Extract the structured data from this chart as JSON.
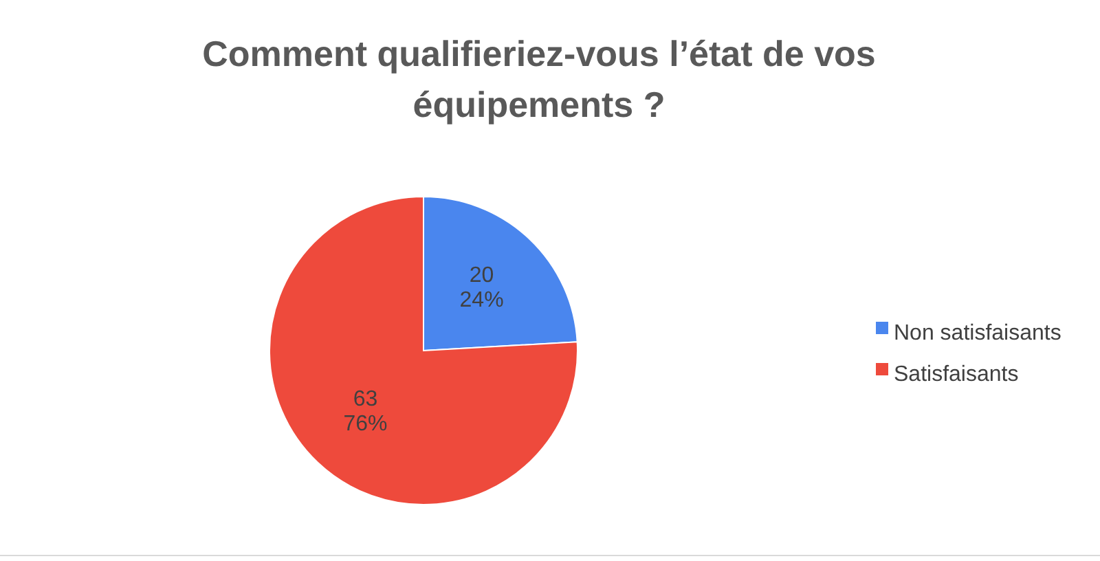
{
  "chart_data": {
    "type": "pie",
    "title": "Comment qualifieriez-vous l’état de vos équipements ?",
    "categories": [
      "Non satisfaisants",
      "Satisfaisants"
    ],
    "values": [
      20,
      63
    ],
    "colors": [
      "#4a86ee",
      "#ee4a3c"
    ],
    "value_labels": [
      "20\n24%",
      "63\n76%"
    ],
    "legend": "right"
  }
}
